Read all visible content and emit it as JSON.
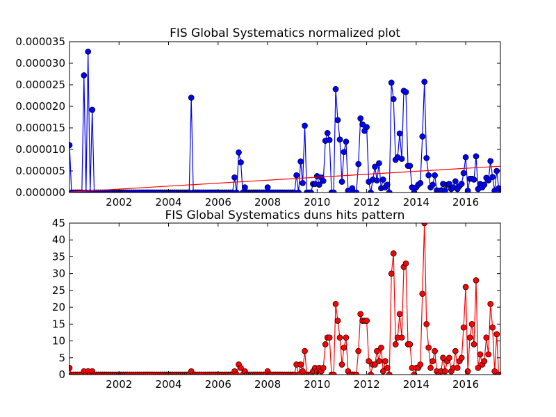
{
  "chart_data": [
    {
      "type": "line",
      "title": "FIS Global Systematics normalized plot",
      "xlabel": "",
      "ylabel": "",
      "xlim": [
        2000.0,
        2017.4
      ],
      "ylim": [
        0,
        3.5e-05
      ],
      "yticks": [
        "0.000000",
        "0.000005",
        "0.000010",
        "0.000015",
        "0.000020",
        "0.000025",
        "0.000030",
        "0.000035"
      ],
      "xticks": [
        "2002",
        "2004",
        "2006",
        "2008",
        "2010",
        "2012",
        "2014",
        "2016"
      ],
      "grid": false,
      "colors": {
        "series": "#0000ff",
        "trend": "#ff0000"
      },
      "series": [
        {
          "marker": "circle",
          "x": [
            2000.0,
            2000.58,
            2000.75,
            2000.92,
            2004.92,
            2006.67,
            2006.83,
            2006.92,
            2007.08,
            2008.0,
            2009.17,
            2009.33,
            2009.42,
            2009.5,
            2009.83,
            2009.92,
            2010.0,
            2010.08,
            2010.17,
            2010.25,
            2010.33,
            2010.42,
            2010.5,
            2010.75,
            2010.83,
            2010.92,
            2011.0,
            2011.08,
            2011.17,
            2011.25,
            2011.42,
            2011.67,
            2011.75,
            2011.83,
            2011.92,
            2012.0,
            2012.08,
            2012.25,
            2012.33,
            2012.42,
            2012.5,
            2012.58,
            2012.67,
            2012.75,
            2012.83,
            2013.0,
            2013.08,
            2013.17,
            2013.25,
            2013.33,
            2013.42,
            2013.5,
            2013.58,
            2013.67,
            2013.75,
            2013.83,
            2014.0,
            2014.08,
            2014.17,
            2014.25,
            2014.33,
            2014.42,
            2014.5,
            2014.58,
            2014.67,
            2014.75,
            2014.83,
            2015.0,
            2015.08,
            2015.17,
            2015.25,
            2015.33,
            2015.42,
            2015.5,
            2015.58,
            2015.67,
            2015.75,
            2015.83,
            2015.92,
            2016.0,
            2016.08,
            2016.17,
            2016.25,
            2016.33,
            2016.42,
            2016.5,
            2016.58,
            2016.67,
            2016.75,
            2016.83,
            2016.92,
            2017.0,
            2017.08,
            2017.17,
            2017.25,
            2017.33
          ],
          "y": [
            1.1e-05,
            2.72e-05,
            3.27e-05,
            1.92e-05,
            2.2e-05,
            3.5e-06,
            9.3e-06,
            7e-06,
            1.2e-06,
            1.2e-06,
            4e-06,
            7.2e-06,
            2.2e-06,
            1.55e-05,
            2e-06,
            2e-06,
            3.8e-06,
            1.8e-06,
            3.5e-06,
            2.7e-06,
            1.2e-05,
            1.38e-05,
            1.22e-05,
            2.4e-05,
            1.68e-05,
            1.23e-05,
            2.5e-06,
            9.4e-06,
            1.18e-05,
            4e-07,
            1e-06,
            6.6e-06,
            1.72e-05,
            1.58e-05,
            1.43e-05,
            1.52e-05,
            2.5e-06,
            3e-06,
            6e-06,
            2.8e-06,
            6.8e-06,
            1e-06,
            3e-06,
            1.2e-06,
            1.8e-06,
            2.55e-05,
            2.17e-05,
            7.6e-06,
            8.2e-06,
            1.37e-05,
            7.8e-06,
            2.36e-05,
            2.33e-05,
            6.2e-06,
            6.2e-06,
            1.2e-06,
            1.2e-06,
            1.8e-06,
            2.2e-06,
            1.3e-05,
            2.57e-05,
            8e-06,
            4e-06,
            1.2e-06,
            1.8e-06,
            4e-06,
            5e-07,
            5e-07,
            2e-06,
            5e-07,
            1.8e-06,
            2e-06,
            8e-07,
            1.2e-06,
            2.6e-06,
            8e-07,
            1.5e-06,
            2e-06,
            4.5e-06,
            8.2e-06,
            4e-07,
            3.2e-06,
            3.2e-06,
            3e-06,
            8.4e-06,
            8e-07,
            2e-06,
            1.2e-06,
            1.8e-06,
            3.4e-06,
            2.8e-06,
            7.3e-06,
            3.6e-06,
            4e-07,
            5e-06,
            1e-06
          ]
        },
        {
          "type": "trend-line",
          "x": [
            2000.0,
            2017.4
          ],
          "y": [
            1e-07,
            6.1e-06
          ]
        }
      ]
    },
    {
      "type": "line",
      "title": "FIS Global Systematics duns hits pattern",
      "xlabel": "",
      "ylabel": "",
      "xlim": [
        2000.0,
        2017.4
      ],
      "ylim": [
        0,
        45
      ],
      "yticks": [
        "0",
        "5",
        "10",
        "15",
        "20",
        "25",
        "30",
        "35",
        "40",
        "45"
      ],
      "xticks": [
        "2002",
        "2004",
        "2006",
        "2008",
        "2010",
        "2012",
        "2014",
        "2016"
      ],
      "grid": false,
      "colors": {
        "series": "#ff0000"
      },
      "series": [
        {
          "marker": "circle",
          "x": [
            2000.0,
            2000.58,
            2000.75,
            2000.92,
            2004.92,
            2006.67,
            2006.83,
            2006.92,
            2007.08,
            2008.0,
            2009.17,
            2009.33,
            2009.42,
            2009.5,
            2009.83,
            2009.92,
            2010.0,
            2010.08,
            2010.17,
            2010.25,
            2010.33,
            2010.42,
            2010.5,
            2010.75,
            2010.83,
            2010.92,
            2011.0,
            2011.08,
            2011.17,
            2011.25,
            2011.42,
            2011.67,
            2011.75,
            2011.83,
            2011.92,
            2012.0,
            2012.08,
            2012.25,
            2012.33,
            2012.42,
            2012.5,
            2012.58,
            2012.67,
            2012.75,
            2012.83,
            2013.0,
            2013.08,
            2013.17,
            2013.25,
            2013.33,
            2013.42,
            2013.5,
            2013.58,
            2013.67,
            2013.75,
            2013.83,
            2014.0,
            2014.08,
            2014.17,
            2014.25,
            2014.33,
            2014.42,
            2014.5,
            2014.58,
            2014.67,
            2014.75,
            2014.83,
            2015.0,
            2015.08,
            2015.17,
            2015.25,
            2015.33,
            2015.42,
            2015.5,
            2015.58,
            2015.67,
            2015.75,
            2015.83,
            2015.92,
            2016.0,
            2016.08,
            2016.17,
            2016.25,
            2016.33,
            2016.42,
            2016.5,
            2016.58,
            2016.67,
            2016.75,
            2016.83,
            2016.92,
            2017.0,
            2017.08,
            2017.17,
            2017.25,
            2017.33
          ],
          "y": [
            2,
            1,
            1,
            1,
            1,
            1,
            3,
            2,
            1,
            1,
            3,
            3,
            1,
            7,
            1,
            2,
            1,
            2,
            1,
            2,
            9,
            11,
            11,
            21,
            16,
            11,
            3,
            8,
            11,
            1,
            0,
            7,
            18,
            16,
            16,
            16,
            4,
            3,
            3,
            7,
            4,
            8,
            1,
            4,
            2,
            30,
            36,
            9,
            11,
            18,
            11,
            32,
            33,
            9,
            9,
            2,
            2,
            2,
            3,
            24,
            45,
            15,
            8,
            2,
            4,
            7,
            1,
            1,
            5,
            1,
            4,
            5,
            1,
            2,
            7,
            2,
            4,
            5,
            14,
            26,
            1,
            11,
            15,
            9,
            28,
            2,
            6,
            3,
            4,
            11,
            6,
            21,
            14,
            1,
            12,
            0
          ]
        }
      ]
    }
  ]
}
